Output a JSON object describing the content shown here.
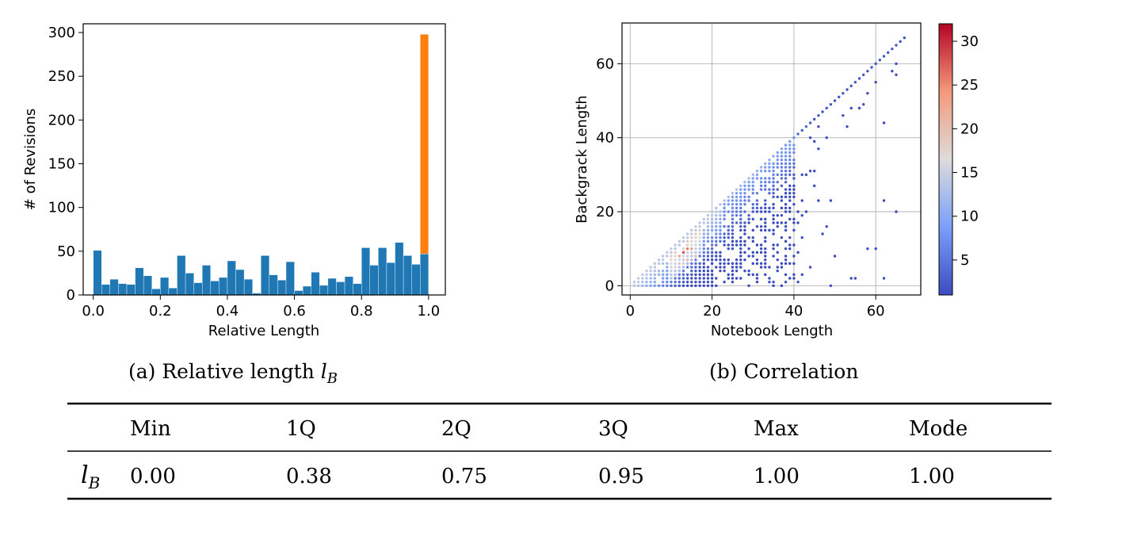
{
  "chart_data": [
    {
      "type": "bar",
      "stacked": true,
      "xlabel": "Relative Length",
      "ylabel": "# of Revisions",
      "xlim": [
        -0.03,
        1.05
      ],
      "ylim": [
        0,
        310
      ],
      "xticks": [
        "0.0",
        "0.2",
        "0.4",
        "0.6",
        "0.8",
        "1.0"
      ],
      "yticks": [
        "0",
        "50",
        "100",
        "150",
        "200",
        "250",
        "300"
      ],
      "bin_width": 0.025,
      "x": [
        0.0,
        0.025,
        0.05,
        0.075,
        0.1,
        0.125,
        0.15,
        0.175,
        0.2,
        0.225,
        0.25,
        0.275,
        0.3,
        0.325,
        0.35,
        0.375,
        0.4,
        0.425,
        0.45,
        0.475,
        0.5,
        0.525,
        0.55,
        0.575,
        0.6,
        0.625,
        0.65,
        0.675,
        0.7,
        0.725,
        0.75,
        0.775,
        0.8,
        0.825,
        0.85,
        0.875,
        0.9,
        0.925,
        0.95,
        0.975
      ],
      "series": [
        {
          "color": "#1f77b4",
          "values": [
            51,
            12,
            18,
            13,
            12,
            31,
            22,
            7,
            20,
            8,
            45,
            25,
            14,
            34,
            16,
            20,
            39,
            29,
            18,
            2,
            45,
            23,
            17,
            38,
            5,
            10,
            26,
            11,
            19,
            15,
            21,
            13,
            54,
            34,
            54,
            37,
            60,
            45,
            35,
            47
          ]
        },
        {
          "color": "#ff7f0e",
          "values": [
            0,
            0,
            0,
            0,
            0,
            0,
            0,
            0,
            0,
            0,
            0,
            0,
            0,
            0,
            0,
            0,
            0,
            0,
            0,
            0,
            0,
            0,
            0,
            0,
            0,
            0,
            0,
            0,
            0,
            0,
            0,
            0,
            0,
            0,
            0,
            0,
            0,
            0,
            0,
            251
          ]
        }
      ]
    },
    {
      "type": "scatter",
      "xlabel": "Notebook Length",
      "ylabel": "Backgrack Length",
      "xlim": [
        -2,
        71
      ],
      "ylim": [
        -2.5,
        71
      ],
      "xticks": [
        "0",
        "20",
        "40",
        "60"
      ],
      "yticks": [
        "0",
        "20",
        "40",
        "60"
      ],
      "grid": true,
      "colormap": "coolwarm",
      "colorbar": {
        "range": [
          1,
          32
        ],
        "ticks": [
          "5",
          "10",
          "15",
          "20",
          "25",
          "30"
        ]
      },
      "points_note": "dense triangular region x>=y for x in 1..40, diagonal y=x to 67, scattered points below",
      "points": [
        [
          1,
          1,
          14
        ],
        [
          2,
          2,
          14
        ],
        [
          3,
          3,
          14
        ],
        [
          4,
          4,
          14
        ],
        [
          5,
          5,
          14
        ],
        [
          6,
          6,
          14
        ],
        [
          7,
          7,
          14
        ],
        [
          8,
          8,
          14
        ],
        [
          9,
          9,
          14
        ],
        [
          10,
          10,
          14
        ],
        [
          11,
          11,
          14
        ],
        [
          12,
          12,
          14
        ],
        [
          13,
          13,
          14
        ],
        [
          14,
          14,
          14
        ],
        [
          15,
          15,
          14
        ],
        [
          16,
          16,
          14
        ],
        [
          17,
          17,
          14
        ],
        [
          18,
          18,
          14
        ],
        [
          19,
          19,
          14
        ],
        [
          20,
          20,
          14
        ],
        [
          21,
          21,
          13
        ],
        [
          22,
          22,
          13
        ],
        [
          23,
          23,
          13
        ],
        [
          24,
          24,
          13
        ],
        [
          25,
          25,
          13
        ],
        [
          26,
          26,
          13
        ],
        [
          27,
          27,
          12
        ],
        [
          28,
          28,
          12
        ],
        [
          29,
          29,
          12
        ],
        [
          30,
          30,
          12
        ],
        [
          31,
          31,
          11
        ],
        [
          32,
          32,
          11
        ],
        [
          33,
          33,
          11
        ],
        [
          34,
          34,
          10
        ],
        [
          35,
          35,
          10
        ],
        [
          36,
          36,
          9
        ],
        [
          37,
          37,
          9
        ],
        [
          38,
          38,
          8
        ],
        [
          39,
          39,
          8
        ],
        [
          40,
          40,
          7
        ],
        [
          41,
          41,
          4
        ],
        [
          42,
          42,
          3
        ],
        [
          43,
          43,
          3
        ],
        [
          44,
          44,
          3
        ],
        [
          45,
          45,
          2
        ],
        [
          46,
          46,
          2
        ],
        [
          47,
          47,
          2
        ],
        [
          48,
          48,
          2
        ],
        [
          49,
          49,
          2
        ],
        [
          50,
          50,
          2
        ],
        [
          51,
          51,
          2
        ],
        [
          52,
          52,
          2
        ],
        [
          53,
          53,
          2
        ],
        [
          54,
          54,
          2
        ],
        [
          55,
          55,
          2
        ],
        [
          56,
          56,
          2
        ],
        [
          57,
          57,
          2
        ],
        [
          58,
          58,
          2
        ],
        [
          59,
          59,
          2
        ],
        [
          60,
          60,
          2
        ],
        [
          61,
          61,
          2
        ],
        [
          62,
          62,
          2
        ],
        [
          63,
          63,
          2
        ],
        [
          64,
          64,
          2
        ],
        [
          65,
          65,
          2
        ],
        [
          66,
          66,
          2
        ],
        [
          67,
          67,
          2
        ],
        [
          13,
          9,
          28
        ],
        [
          14,
          10,
          26
        ],
        [
          15,
          10,
          24
        ],
        [
          16,
          8,
          20
        ],
        [
          12,
          8,
          22
        ],
        [
          14,
          7,
          20
        ],
        [
          11,
          5,
          18
        ],
        [
          13,
          6,
          18
        ],
        [
          42,
          30,
          1
        ],
        [
          43,
          30,
          1
        ],
        [
          44,
          31,
          1
        ],
        [
          45,
          27,
          1
        ],
        [
          42,
          23,
          1
        ],
        [
          41,
          20,
          1
        ],
        [
          43,
          20,
          1
        ],
        [
          42,
          19,
          1
        ],
        [
          42,
          13,
          1
        ],
        [
          41,
          17,
          1
        ],
        [
          46,
          43,
          1
        ],
        [
          45,
          39,
          1
        ],
        [
          44,
          40,
          1
        ],
        [
          48,
          40,
          1
        ],
        [
          46,
          37,
          1
        ],
        [
          45,
          31,
          1
        ],
        [
          46,
          23,
          1
        ],
        [
          49,
          23,
          1
        ],
        [
          47,
          14,
          1
        ],
        [
          48,
          16,
          1
        ],
        [
          50,
          8,
          1
        ],
        [
          49,
          0,
          1
        ],
        [
          52,
          46,
          1
        ],
        [
          53,
          43,
          1
        ],
        [
          56,
          48,
          1
        ],
        [
          58,
          52,
          1
        ],
        [
          62,
          44,
          1
        ],
        [
          62,
          23,
          1
        ],
        [
          62,
          2,
          1
        ],
        [
          65,
          20,
          1
        ],
        [
          58,
          10,
          1
        ],
        [
          60,
          10,
          1
        ],
        [
          54,
          2,
          1
        ],
        [
          55,
          2,
          1
        ],
        [
          64,
          58,
          1
        ],
        [
          65,
          57,
          1
        ],
        [
          65,
          60,
          1
        ],
        [
          60,
          55,
          1
        ],
        [
          57,
          49,
          1
        ],
        [
          54,
          48,
          1
        ],
        [
          40,
          3,
          1
        ],
        [
          39,
          6,
          1
        ],
        [
          42,
          3,
          1
        ],
        [
          41,
          1,
          1
        ],
        [
          44,
          5,
          1
        ],
        [
          38,
          1,
          1
        ],
        [
          37,
          0,
          1
        ],
        [
          39,
          11,
          1
        ],
        [
          40,
          15,
          1
        ],
        [
          41,
          9,
          1
        ]
      ]
    }
  ],
  "captions": {
    "a_prefix": "(a) Relative length ",
    "a_symbol": "l",
    "a_sub": "B",
    "b": "(b) Correlation"
  },
  "table": {
    "headers": [
      "Min",
      "1Q",
      "2Q",
      "3Q",
      "Max",
      "Mode"
    ],
    "row_symbol": "l",
    "row_sub": "B",
    "values": [
      "0.00",
      "0.38",
      "0.75",
      "0.95",
      "1.00",
      "1.00"
    ]
  }
}
